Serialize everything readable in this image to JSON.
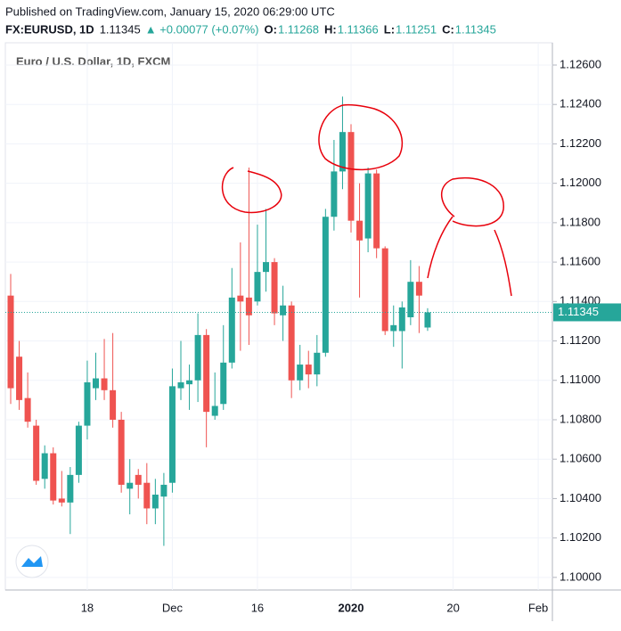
{
  "header": {
    "published": "Published on TradingView.com, January 15, 2020 06:29:00 UTC",
    "symbol": "FX:EURUSD, 1D",
    "change": "▲ +0.00077 (+0.07%)",
    "ohlc_labels": [
      "O:",
      "H:",
      "L:",
      "C:"
    ]
  },
  "chart_data": {
    "type": "candlestick",
    "title": "Euro / U.S. Dollar, 1D, FXCM",
    "categories": [
      null,
      null,
      null,
      null,
      null,
      null,
      null,
      null,
      null,
      "18",
      null,
      null,
      null,
      null,
      null,
      null,
      null,
      null,
      null,
      "Dec",
      null,
      null,
      null,
      null,
      null,
      null,
      null,
      null,
      null,
      "16",
      null,
      null,
      null,
      null,
      null,
      null,
      null,
      null,
      null,
      null,
      "2020",
      null,
      null,
      null,
      null,
      null,
      null,
      null,
      null,
      null,
      null,
      null,
      "20",
      null,
      null,
      null,
      null,
      null,
      null,
      null,
      null,
      null,
      "Feb"
    ],
    "open": [
      1.1143,
      1.1112,
      1.1091,
      1.1077,
      1.105,
      1.1063,
      1.104,
      1.1038,
      1.1052,
      1.1077,
      1.1096,
      1.1101,
      1.1095,
      1.108,
      1.1045,
      1.1052,
      1.1048,
      1.1035,
      1.1041,
      1.1048,
      1.1096,
      1.1098,
      1.11,
      1.1123,
      1.1082,
      1.1088,
      1.1109,
      1.1143,
      1.1142,
      1.114,
      1.1155,
      1.116,
      1.1133,
      1.1138,
      1.11,
      1.1108,
      1.1103,
      1.1114,
      1.1183,
      1.1206,
      1.1226,
      1.1181,
      1.1172,
      1.1205,
      1.1167,
      1.1125,
      1.1125,
      1.1132,
      1.115,
      1.11268,
      null,
      null,
      null,
      null,
      null,
      null,
      null,
      null,
      null,
      null,
      null,
      null,
      null
    ],
    "high": [
      1.1154,
      1.112,
      1.1104,
      1.108,
      1.1067,
      1.1066,
      1.1054,
      1.1056,
      1.1079,
      1.111,
      1.1114,
      1.1121,
      1.1124,
      1.1084,
      1.106,
      1.1055,
      1.1058,
      1.105,
      1.1053,
      1.1106,
      1.112,
      1.1108,
      1.1134,
      1.1126,
      1.1104,
      1.1128,
      1.1157,
      1.117,
      1.1208,
      1.1179,
      1.1187,
      1.1162,
      1.1148,
      1.114,
      1.1118,
      1.1115,
      1.1123,
      1.1187,
      1.1222,
      1.1244,
      1.123,
      1.12,
      1.1208,
      1.1207,
      1.1168,
      1.1138,
      1.114,
      1.1161,
      1.1158,
      1.11366,
      null,
      null,
      null,
      null,
      null,
      null,
      null,
      null,
      null,
      null,
      null,
      null,
      null
    ],
    "low": [
      1.1088,
      1.1085,
      1.1076,
      1.1047,
      1.1045,
      1.1037,
      1.1036,
      1.1022,
      1.1048,
      1.107,
      1.109,
      1.109,
      1.1076,
      1.1043,
      1.1032,
      1.104,
      1.1027,
      1.1027,
      1.1016,
      1.1043,
      1.109,
      1.1085,
      1.1089,
      1.1066,
      1.108,
      1.1085,
      1.1106,
      1.1115,
      1.1118,
      1.1138,
      1.1145,
      1.1128,
      1.112,
      1.1091,
      1.1095,
      1.1096,
      1.1097,
      1.1112,
      1.1176,
      1.1197,
      1.1175,
      1.1142,
      1.1165,
      1.1162,
      1.1123,
      1.1117,
      1.1106,
      1.1128,
      1.1124,
      1.11251,
      null,
      null,
      null,
      null,
      null,
      null,
      null,
      null,
      null,
      null,
      null,
      null,
      null
    ],
    "close": [
      1.1096,
      1.109,
      1.1079,
      1.1049,
      1.1063,
      1.1039,
      1.1038,
      1.1052,
      1.1077,
      1.1099,
      1.1101,
      1.1095,
      1.108,
      1.1047,
      1.1048,
      1.1047,
      1.1035,
      1.1042,
      1.1047,
      1.1097,
      1.1099,
      1.11,
      1.1123,
      1.1084,
      1.1087,
      1.1109,
      1.1142,
      1.114,
      1.1133,
      1.1155,
      1.116,
      1.1134,
      1.1138,
      1.11,
      1.1108,
      1.1103,
      1.1114,
      1.1183,
      1.1206,
      1.1226,
      1.1181,
      1.1171,
      1.1205,
      1.1167,
      1.1125,
      1.1128,
      1.1137,
      1.115,
      1.1143,
      1.11345,
      null,
      null,
      null,
      null,
      null,
      null,
      null,
      null,
      null,
      null,
      null,
      null,
      null
    ],
    "up_color": "#26a69a",
    "down_color": "#ef5350",
    "ylim": [
      1.09936,
      1.12713
    ],
    "yticks": [
      {
        "value": 1.126,
        "label": "1.12600"
      },
      {
        "value": 1.124,
        "label": "1.12400"
      },
      {
        "value": 1.122,
        "label": "1.12200"
      },
      {
        "value": 1.12,
        "label": "1.12000"
      },
      {
        "value": 1.118,
        "label": "1.11800"
      },
      {
        "value": 1.116,
        "label": "1.11600"
      },
      {
        "value": 1.114,
        "label": "1.11400"
      },
      {
        "value": 1.112,
        "label": "1.11200"
      },
      {
        "value": 1.11,
        "label": "1.11000"
      },
      {
        "value": 1.108,
        "label": "1.10800"
      },
      {
        "value": 1.106,
        "label": "1.10600"
      },
      {
        "value": 1.104,
        "label": "1.10400"
      },
      {
        "value": 1.102,
        "label": "1.10200"
      },
      {
        "value": 1.1,
        "label": "1.10000"
      }
    ],
    "grid": true
  }
}
